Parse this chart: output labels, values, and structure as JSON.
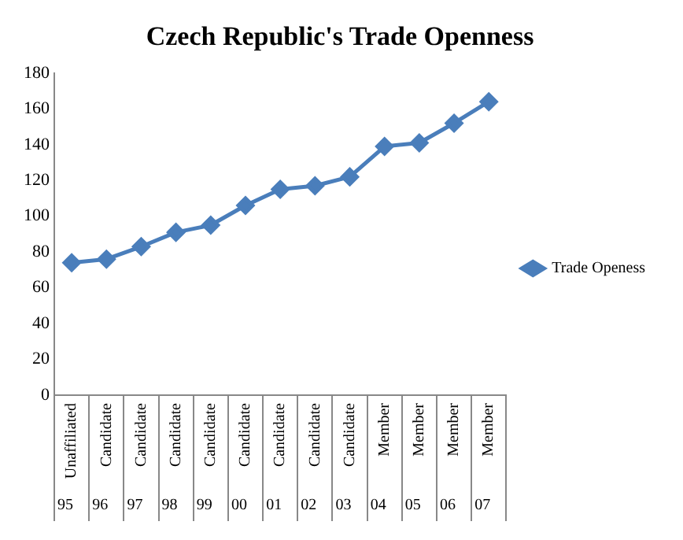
{
  "chart_data": {
    "type": "line",
    "title": "Czech Republic's Trade Openness",
    "categories": [
      "95",
      "96",
      "97",
      "98",
      "99",
      "00",
      "01",
      "02",
      "03",
      "04",
      "05",
      "06",
      "07"
    ],
    "series": [
      {
        "name": "Trade Openess",
        "color": "#4a7ebb",
        "values": [
          74,
          76,
          83,
          91,
          95,
          106,
          115,
          117,
          122,
          139,
          141,
          152,
          164
        ]
      }
    ],
    "ylim": [
      0,
      180
    ],
    "yticks": [
      0,
      20,
      40,
      60,
      80,
      100,
      120,
      140,
      160,
      180
    ],
    "grid": false,
    "legend": "right",
    "marker": "diamond",
    "line_style": "solid",
    "annotations": [
      "Unaffiliated",
      "Candidate",
      "Candidate",
      "Candidate",
      "Candidate",
      "Candidate",
      "Candidate",
      "Candidate",
      "Candidate",
      "Member",
      "Member",
      "Member",
      "Member"
    ]
  }
}
